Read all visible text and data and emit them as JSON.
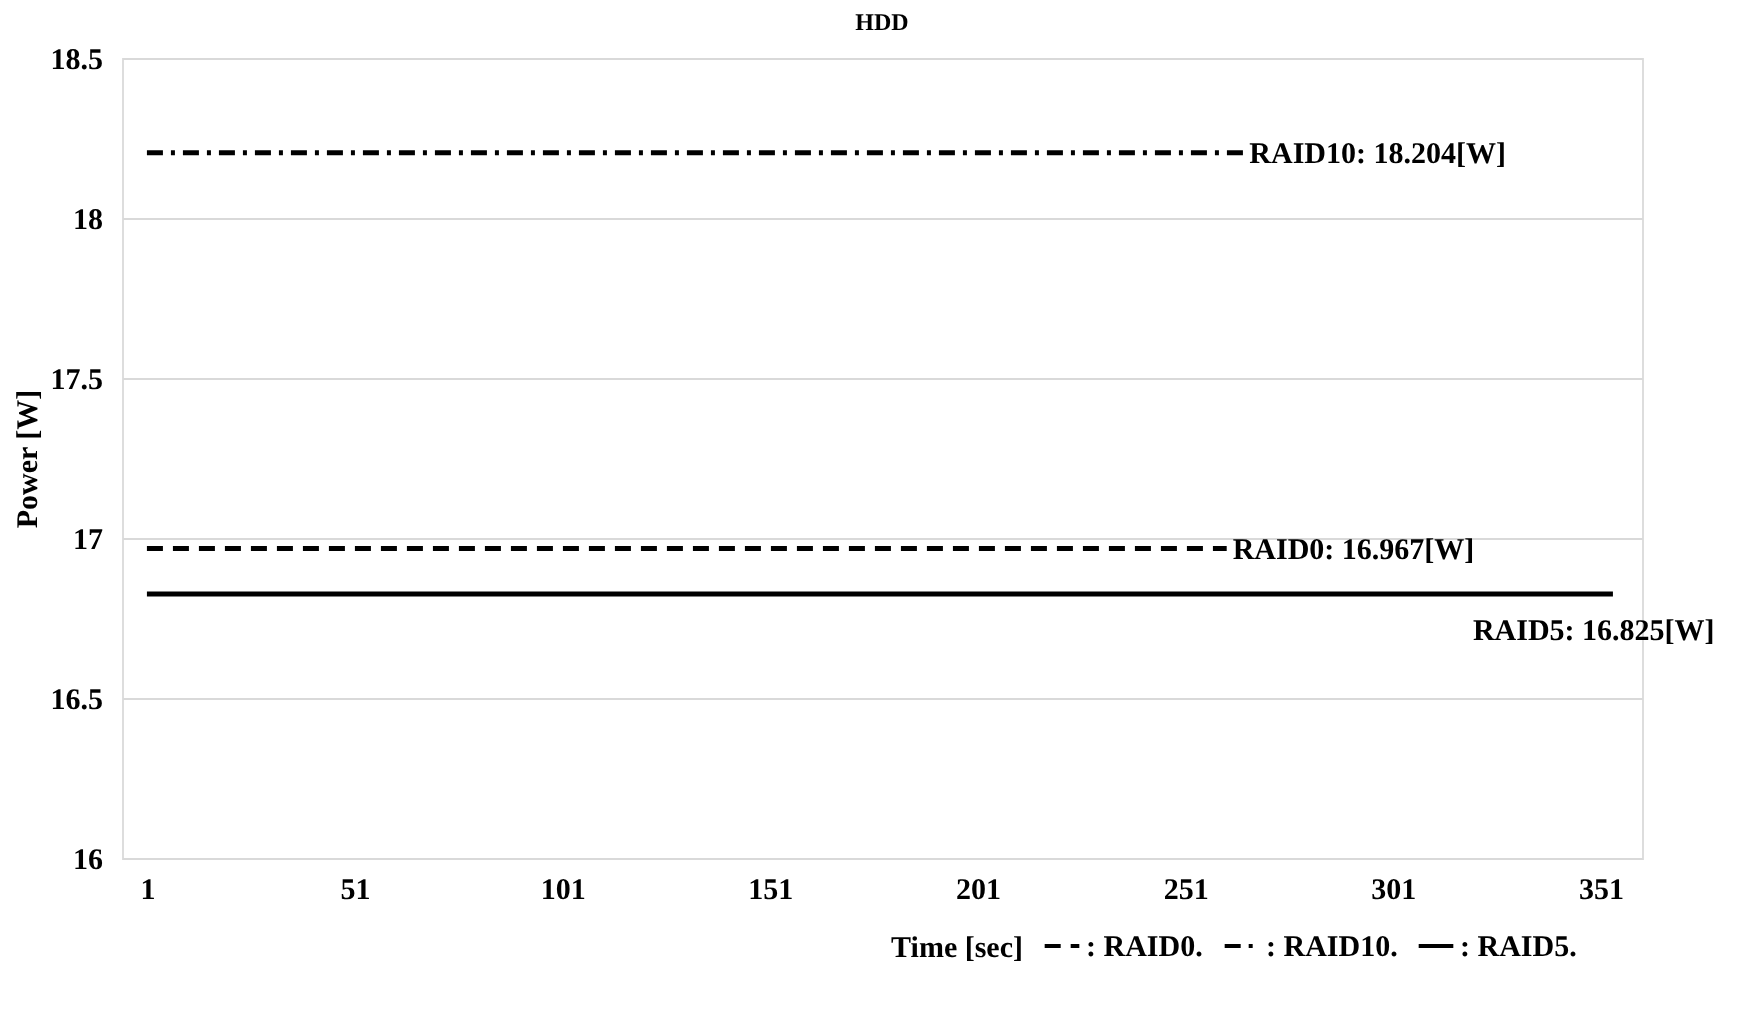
{
  "chart_data": {
    "type": "line",
    "title": "HDD",
    "xlabel": "Time [sec]",
    "ylabel": "Power [W]",
    "xlim": [
      -5,
      361
    ],
    "xticks": [
      1,
      51,
      101,
      151,
      201,
      251,
      301,
      351
    ],
    "ylim": [
      16,
      18.5
    ],
    "yticks": [
      16,
      16.5,
      17,
      17.5,
      18,
      18.5
    ],
    "grid": "y",
    "legend": "bottom",
    "series": [
      {
        "name": ": RAID0.",
        "color": "#000000",
        "line_style": "dashed",
        "x": [
          1,
          261
        ],
        "values": [
          16.967,
          16.967
        ]
      },
      {
        "name": ": RAID10.",
        "color": "#000000",
        "line_style": "dashdot",
        "x": [
          1,
          265
        ],
        "values": [
          18.204,
          18.204
        ]
      },
      {
        "name": ": RAID5.",
        "color": "#000000",
        "line_style": "solid",
        "x": [
          1,
          354
        ],
        "values": [
          16.825,
          16.825
        ]
      }
    ],
    "annotations": [
      {
        "text": "RAID0: 16.967[W]",
        "x": 261,
        "y": 16.967
      },
      {
        "text": "RAID10: 18.204[W]",
        "x": 265,
        "y": 18.204
      },
      {
        "text": "RAID5: 16.825[W]",
        "x": 354,
        "y": 16.825
      }
    ]
  }
}
